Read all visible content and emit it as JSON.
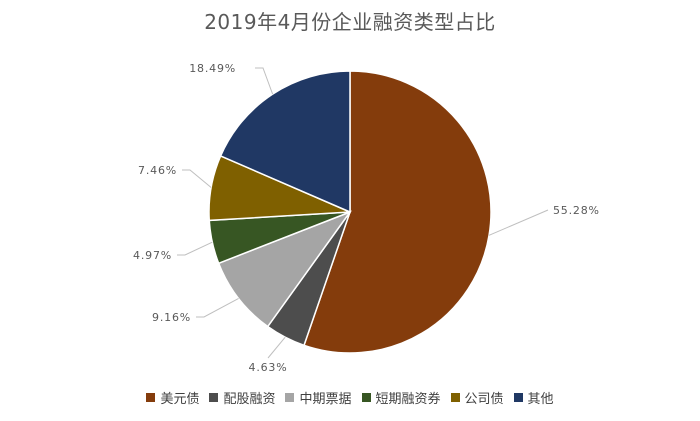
{
  "chart_data": {
    "type": "pie",
    "title": "2019年4月份企业融资类型占比",
    "categories": [
      "美元债",
      "配股融资",
      "中期票据",
      "短期融资券",
      "公司债",
      "其他"
    ],
    "values": [
      55.28,
      4.63,
      9.16,
      4.97,
      7.46,
      18.49
    ],
    "labels": [
      "55.28%",
      "4.63%",
      "9.16%",
      "4.97%",
      "7.46%",
      "18.49%"
    ],
    "colors": [
      "#843C0C",
      "#4D4D4D",
      "#A5A5A5",
      "#375623",
      "#7F6000",
      "#203864"
    ],
    "legend_position": "bottom"
  }
}
